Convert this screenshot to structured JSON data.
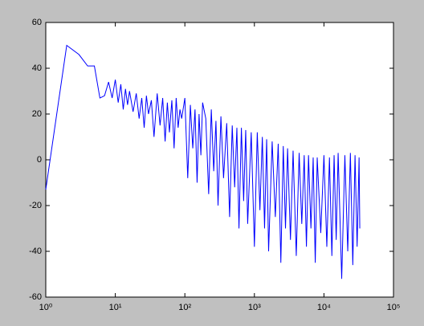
{
  "chart_data": {
    "type": "line",
    "xscale": "log",
    "x": [
      1,
      2,
      3,
      4,
      5,
      6,
      7,
      8,
      9,
      10,
      11,
      12,
      13,
      14,
      15,
      16,
      18,
      20,
      22,
      24,
      26,
      28,
      30,
      33,
      36,
      40,
      44,
      48,
      52,
      56,
      60,
      65,
      70,
      75,
      80,
      85,
      90,
      100,
      110,
      120,
      130,
      140,
      150,
      160,
      170,
      180,
      200,
      220,
      240,
      260,
      280,
      300,
      330,
      360,
      400,
      440,
      480,
      520,
      560,
      600,
      650,
      700,
      750,
      800,
      900,
      1000,
      1100,
      1200,
      1300,
      1400,
      1500,
      1600,
      1800,
      2000,
      2200,
      2400,
      2600,
      2800,
      3000,
      3300,
      3600,
      4000,
      4400,
      4800,
      5200,
      5600,
      6000,
      6500,
      7000,
      7500,
      8000,
      9000,
      10000,
      11000,
      12000,
      13000,
      14000,
      15000,
      16000,
      18000,
      20000,
      22000,
      24000,
      26000,
      28000,
      30000,
      32000,
      32768
    ],
    "values": [
      -13,
      50,
      46,
      41,
      41,
      27,
      28,
      34,
      27,
      35,
      25,
      33,
      22,
      31,
      24,
      30,
      21,
      29,
      18,
      27,
      14,
      28,
      20,
      26,
      10,
      29,
      15,
      27,
      8,
      25,
      12,
      26,
      5,
      27,
      14,
      22,
      18,
      27,
      -8,
      24,
      5,
      22,
      -10,
      20,
      2,
      25,
      18,
      -15,
      22,
      -5,
      17,
      -20,
      19,
      -8,
      16,
      -25,
      15,
      -12,
      14,
      -30,
      14,
      -18,
      13,
      -28,
      12,
      -38,
      12,
      -22,
      10,
      -30,
      9,
      -40,
      8,
      -25,
      7,
      -45,
      6,
      -30,
      5,
      -35,
      4,
      -42,
      3,
      -28,
      2,
      -38,
      2,
      -30,
      1,
      -45,
      1,
      -32,
      2,
      -38,
      1,
      -42,
      2,
      -35,
      3,
      -52,
      2,
      -40,
      3,
      -46,
      2,
      -38,
      1,
      -30
    ],
    "color": "#0000ff",
    "xlim": [
      1,
      100000
    ],
    "xticks": [
      {
        "value": 1,
        "label": "10⁰"
      },
      {
        "value": 10,
        "label": "10¹"
      },
      {
        "value": 100,
        "label": "10²"
      },
      {
        "value": 1000,
        "label": "10³"
      },
      {
        "value": 10000,
        "label": "10⁴"
      },
      {
        "value": 100000,
        "label": "10⁵"
      }
    ],
    "ylim": [
      -60,
      60
    ],
    "yticks": [
      -60,
      -40,
      -20,
      0,
      20,
      40,
      60
    ]
  }
}
